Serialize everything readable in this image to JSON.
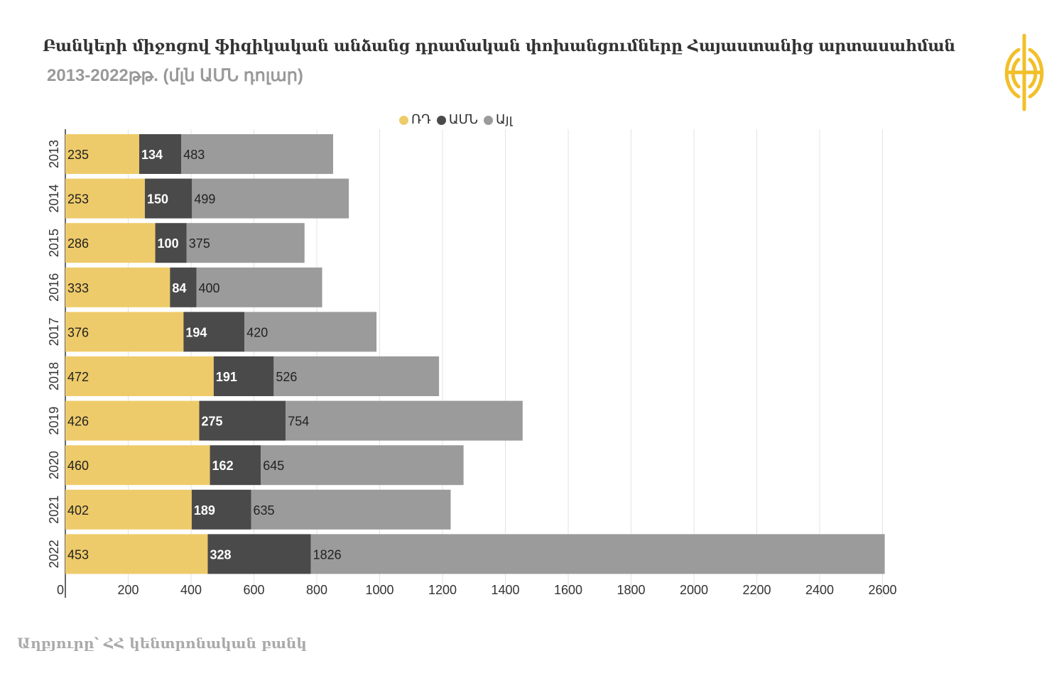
{
  "title": "Բանկերի միջոցով ֆիզիկական անձանց դրամական փոխանցումները Հայաստանից արտասահման",
  "subtitle": "2013-2022թթ. (մլն ԱՄՆ դոլար)",
  "source": "Աղբյուրը՝ ՀՀ կենտրոնական բանկ",
  "chart_data": {
    "type": "bar",
    "orientation": "horizontal",
    "stacked": true,
    "categories": [
      "2013",
      "2014",
      "2015",
      "2016",
      "2017",
      "2018",
      "2019",
      "2020",
      "2021",
      "2022"
    ],
    "series": [
      {
        "name": "ՌԴ",
        "color": "#eecb6a",
        "label_color": "#222",
        "label_bold": false,
        "values": [
          235,
          253,
          286,
          333,
          376,
          472,
          426,
          460,
          402,
          453
        ]
      },
      {
        "name": "ԱՄՆ",
        "color": "#4a4a4a",
        "label_color": "#fff",
        "label_bold": true,
        "values": [
          134,
          150,
          100,
          84,
          194,
          191,
          275,
          162,
          189,
          328
        ]
      },
      {
        "name": "Այլ",
        "color": "#9b9b9b",
        "label_color": "#222",
        "label_bold": false,
        "values": [
          483,
          499,
          375,
          400,
          420,
          526,
          754,
          645,
          635,
          1826
        ]
      }
    ],
    "xticks": [
      0,
      200,
      400,
      600,
      800,
      1000,
      1200,
      1400,
      1600,
      1800,
      2000,
      2200,
      2400,
      2600
    ],
    "xlim": [
      0,
      2640
    ],
    "grid": true,
    "legend": "top-center"
  }
}
